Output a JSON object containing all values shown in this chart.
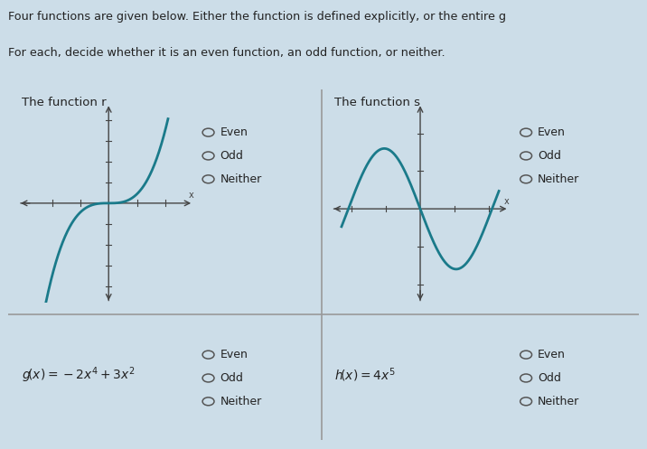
{
  "bg_color": "#ccdde8",
  "table_bg": "#ccdde8",
  "graph_bg": "#ccdde8",
  "border_color": "#999999",
  "curve_color": "#1a7a8a",
  "axis_color": "#444444",
  "text_color": "#222222",
  "radio_options": [
    "Even",
    "Odd",
    "Neither"
  ],
  "header1": "Four functions are given below. Either the function is defined explicitly, or the entire g",
  "header2": "For each, decide whether it is an even function, an odd function, or neither.",
  "label_r": "The function r",
  "label_s": "The function s",
  "figsize": [
    7.16,
    4.97
  ],
  "dpi": 100
}
